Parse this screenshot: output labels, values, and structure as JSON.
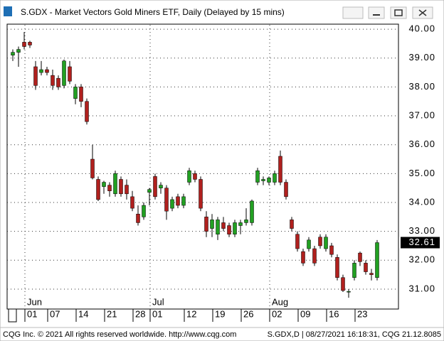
{
  "window": {
    "title": "S.GDX - Market Vectors Gold Miners ETF, Daily (Delayed by 15 mins)"
  },
  "chart_data": {
    "type": "candlestick",
    "categories": [
      null,
      null,
      "01",
      null,
      null,
      null,
      "07",
      null,
      null,
      null,
      null,
      "14",
      null,
      null,
      null,
      null,
      "21",
      null,
      null,
      null,
      null,
      "28",
      null,
      null,
      "01",
      null,
      null,
      null,
      null,
      null,
      "12",
      null,
      null,
      null,
      null,
      "19",
      null,
      null,
      null,
      null,
      "26",
      null,
      null,
      null,
      null,
      "02",
      null,
      null,
      null,
      null,
      "09",
      null,
      null,
      null,
      null,
      "16",
      null,
      null,
      null,
      null,
      "23",
      null,
      null,
      null,
      null
    ],
    "month_labels": [
      null,
      null,
      "Jun",
      null,
      null,
      null,
      null,
      null,
      null,
      null,
      null,
      null,
      null,
      null,
      null,
      null,
      null,
      null,
      null,
      null,
      null,
      null,
      null,
      null,
      "Jul",
      null,
      null,
      null,
      null,
      null,
      null,
      null,
      null,
      null,
      null,
      null,
      null,
      null,
      null,
      null,
      null,
      null,
      null,
      null,
      null,
      "Aug",
      null,
      null,
      null,
      null,
      null,
      null,
      null,
      null,
      null,
      null,
      null,
      null,
      null,
      null,
      null,
      null,
      null,
      null,
      null
    ],
    "open": [
      39.1,
      39.2,
      39.55,
      39.55,
      38.7,
      38.5,
      38.6,
      38.4,
      38.3,
      38.05,
      38.7,
      37.6,
      38.0,
      37.5,
      35.5,
      34.8,
      34.55,
      34.6,
      34.3,
      34.8,
      34.6,
      34.2,
      33.6,
      33.5,
      34.35,
      34.9,
      34.5,
      34.5,
      33.8,
      34.2,
      33.9,
      34.7,
      35.0,
      34.8,
      33.5,
      33.1,
      32.9,
      33.3,
      33.2,
      32.9,
      33.2,
      33.3,
      33.3,
      34.7,
      34.75,
      34.7,
      34.7,
      35.6,
      34.7,
      33.4,
      32.9,
      32.3,
      32.4,
      32.4,
      32.8,
      32.4,
      32.5,
      32.1,
      31.4,
      30.9,
      31.4,
      32.25,
      31.9,
      31.55,
      31.4
    ],
    "high": [
      39.3,
      39.4,
      39.9,
      39.6,
      38.9,
      38.9,
      38.7,
      38.6,
      38.4,
      38.95,
      38.9,
      38.1,
      38.1,
      37.6,
      36.0,
      34.9,
      34.75,
      34.7,
      35.1,
      34.9,
      34.8,
      34.4,
      33.9,
      34.0,
      34.5,
      35.0,
      34.7,
      34.6,
      34.2,
      34.3,
      34.3,
      35.2,
      35.1,
      34.9,
      33.7,
      33.6,
      33.5,
      33.5,
      33.3,
      33.4,
      33.4,
      33.8,
      34.1,
      35.2,
      34.9,
      34.9,
      35.1,
      35.8,
      34.8,
      33.5,
      33.0,
      32.4,
      32.8,
      32.5,
      32.9,
      32.9,
      32.6,
      32.2,
      31.5,
      31.0,
      32.0,
      32.3,
      32.0,
      31.7,
      32.7
    ],
    "low": [
      38.9,
      38.7,
      39.3,
      39.35,
      37.9,
      38.4,
      38.4,
      37.9,
      37.9,
      37.95,
      38.1,
      37.4,
      37.3,
      36.7,
      34.8,
      34.05,
      34.3,
      34.2,
      34.2,
      34.2,
      34.1,
      33.7,
      33.2,
      33.4,
      33.9,
      34.1,
      34.3,
      33.4,
      33.7,
      33.8,
      33.8,
      34.6,
      34.7,
      33.7,
      32.8,
      32.8,
      32.7,
      33.0,
      32.8,
      32.8,
      32.9,
      33.2,
      33.2,
      34.6,
      34.6,
      34.6,
      34.6,
      34.6,
      34.1,
      33.0,
      32.3,
      31.8,
      32.3,
      31.8,
      32.4,
      32.3,
      32.1,
      31.3,
      30.9,
      30.7,
      31.3,
      31.8,
      31.5,
      31.3,
      31.3
    ],
    "close": [
      39.2,
      39.3,
      39.4,
      39.45,
      38.05,
      38.6,
      38.5,
      38.05,
      38.0,
      38.9,
      38.2,
      38.0,
      37.5,
      36.8,
      34.85,
      34.1,
      34.7,
      34.4,
      35.0,
      34.3,
      34.3,
      33.8,
      33.3,
      33.9,
      34.45,
      34.2,
      34.6,
      33.7,
      34.1,
      33.9,
      34.2,
      35.1,
      34.8,
      33.8,
      33.0,
      33.4,
      33.4,
      33.1,
      32.9,
      33.3,
      33.3,
      33.4,
      34.05,
      35.1,
      34.8,
      34.85,
      35.0,
      34.7,
      34.2,
      33.1,
      32.4,
      31.9,
      32.7,
      31.9,
      32.5,
      32.8,
      32.2,
      31.4,
      30.95,
      30.92,
      31.9,
      31.95,
      31.6,
      31.5,
      32.61
    ],
    "up_color": "#22a022",
    "down_color": "#b0201e",
    "ylim": [
      30.31,
      40.15
    ],
    "yticks": [
      {
        "value": 31,
        "label": "31.00"
      },
      {
        "value": 32,
        "label": "32.00"
      },
      {
        "value": 33,
        "label": "33.00"
      },
      {
        "value": 34,
        "label": "34.00"
      },
      {
        "value": 35,
        "label": "35.00"
      },
      {
        "value": 36,
        "label": "36.00"
      },
      {
        "value": 37,
        "label": "37.00"
      },
      {
        "value": 38,
        "label": "38.00"
      },
      {
        "value": 39,
        "label": "39.00"
      },
      {
        "value": 40,
        "label": "40.00"
      }
    ],
    "last_price": 32.61,
    "grid": true
  },
  "footer": {
    "left": "CQG Inc. © 2021 All rights reserved worldwide. http://www.cqg.com",
    "right": "S.GDX,D | 08/27/2021 16:18:31, CQG 21.12.8085"
  }
}
